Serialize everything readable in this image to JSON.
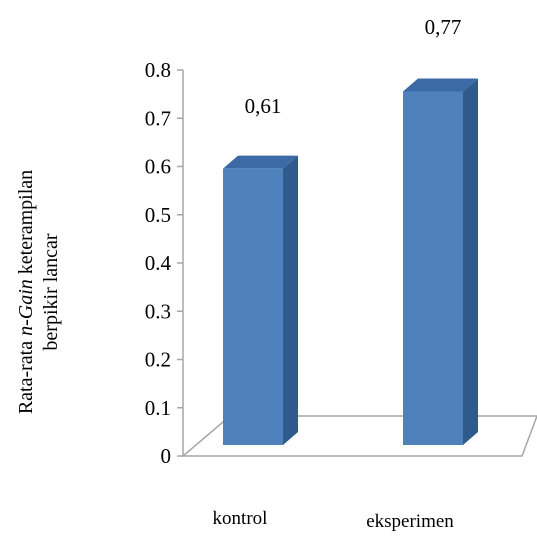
{
  "chart_data": {
    "type": "bar",
    "style": "3d-column",
    "categories": [
      "kontrol",
      "eksperimen"
    ],
    "values": [
      0.61,
      0.77
    ],
    "data_labels": [
      "0,61",
      "0,77"
    ],
    "ylabel_parts": [
      "Rata-rata ",
      "n-Gain",
      " keterampilan"
    ],
    "ylabel_line2": "berpikir  lancar",
    "ylim": [
      0,
      0.8
    ],
    "yticks": [
      "0",
      "0.1",
      "0.2",
      "0.3",
      "0.4",
      "0.5",
      "0.6",
      "0.7",
      "0.8"
    ],
    "grid": false,
    "legend": "none",
    "colors": {
      "bar_front": "#4F81BD",
      "bar_side": "#2F5A8E",
      "bar_top": "#3C6AA6",
      "axis": "#A6A6A6"
    }
  }
}
